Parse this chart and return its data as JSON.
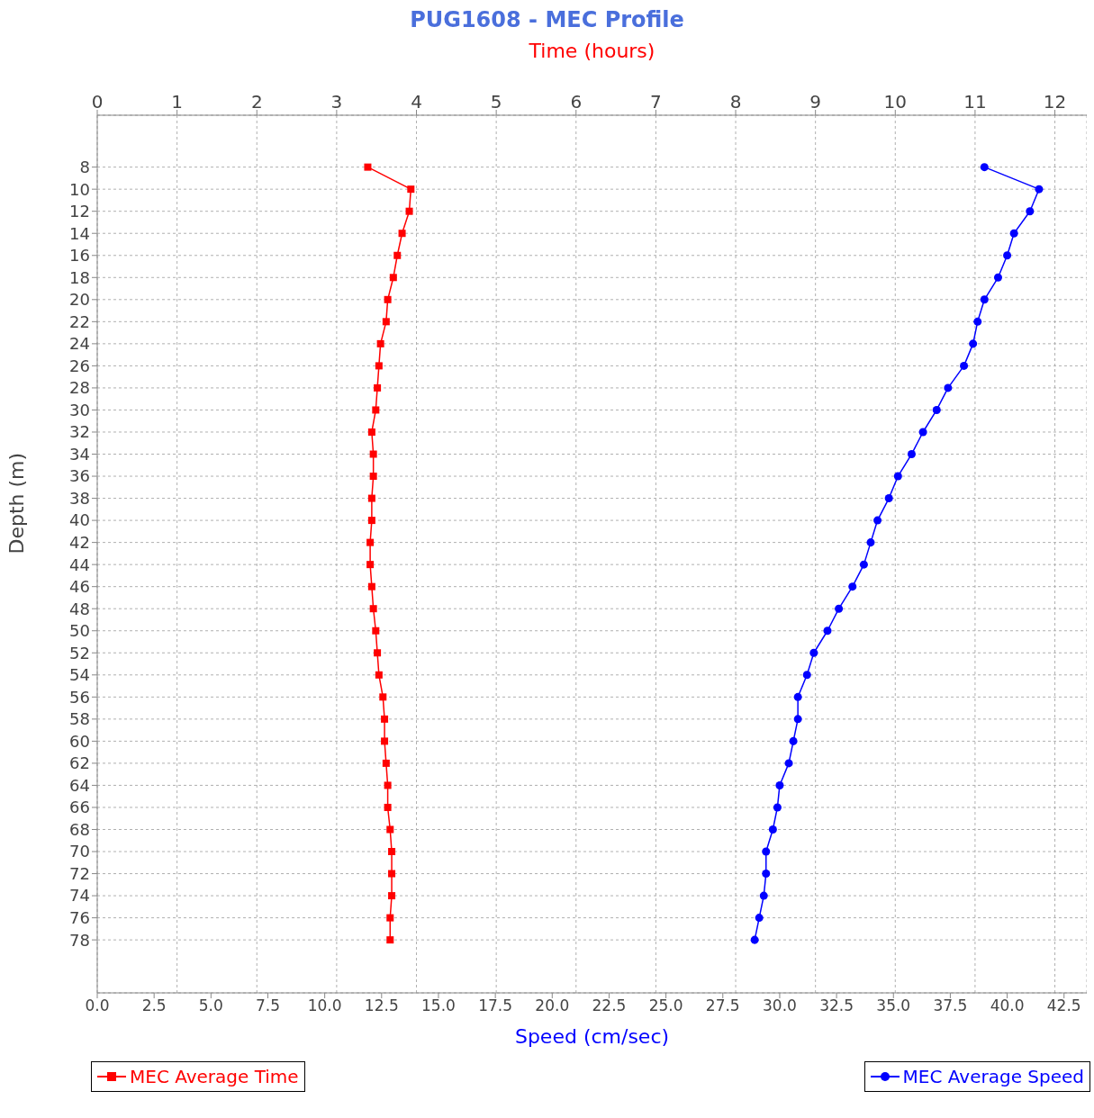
{
  "chart_data": {
    "type": "line",
    "title": "PUG1608 - MEC Profile",
    "xlabel": "Speed (cm/sec)",
    "x2label": "Time (hours)",
    "ylabel": "Depth (m)",
    "xlim": [
      0,
      43.5
    ],
    "xticks": [
      {
        "value": 0,
        "label": "0.0"
      },
      {
        "value": 2.5,
        "label": "2.5"
      },
      {
        "value": 5,
        "label": "5.0"
      },
      {
        "value": 7.5,
        "label": "7.5"
      },
      {
        "value": 10,
        "label": "10.0"
      },
      {
        "value": 12.5,
        "label": "12.5"
      },
      {
        "value": 15,
        "label": "15.0"
      },
      {
        "value": 17.5,
        "label": "17.5"
      },
      {
        "value": 20,
        "label": "20.0"
      },
      {
        "value": 22.5,
        "label": "22.5"
      },
      {
        "value": 25,
        "label": "25.0"
      },
      {
        "value": 27.5,
        "label": "27.5"
      },
      {
        "value": 30,
        "label": "30.0"
      },
      {
        "value": 32.5,
        "label": "32.5"
      },
      {
        "value": 35,
        "label": "35.0"
      },
      {
        "value": 37.5,
        "label": "37.5"
      },
      {
        "value": 40,
        "label": "40.0"
      },
      {
        "value": 42.5,
        "label": "42.5"
      }
    ],
    "x2lim": [
      0,
      12.4
    ],
    "x2ticks": [
      0,
      1,
      2,
      3,
      4,
      5,
      6,
      7,
      8,
      9,
      10,
      11,
      12
    ],
    "ylim": [
      82.8,
      3.3
    ],
    "yticks": [
      8,
      10,
      12,
      14,
      16,
      18,
      20,
      22,
      24,
      26,
      28,
      30,
      32,
      34,
      36,
      38,
      40,
      42,
      44,
      46,
      48,
      50,
      52,
      54,
      56,
      58,
      60,
      62,
      64,
      66,
      68,
      70,
      72,
      74,
      76,
      78
    ],
    "grid": true,
    "legend": "bottom",
    "series": [
      {
        "name": "MEC Average Time",
        "color": "#ff0000",
        "axis": "x2",
        "marker": "square",
        "x": [
          3.39,
          3.93,
          3.91,
          3.82,
          3.76,
          3.71,
          3.64,
          3.62,
          3.55,
          3.53,
          3.51,
          3.49,
          3.44,
          3.46,
          3.46,
          3.44,
          3.44,
          3.42,
          3.42,
          3.44,
          3.46,
          3.49,
          3.51,
          3.53,
          3.58,
          3.6,
          3.6,
          3.62,
          3.64,
          3.64,
          3.67,
          3.69,
          3.69,
          3.69,
          3.67,
          3.67
        ],
        "values": [
          8,
          10,
          12,
          14,
          16,
          18,
          20,
          22,
          24,
          26,
          28,
          30,
          32,
          34,
          36,
          38,
          40,
          42,
          44,
          46,
          48,
          50,
          52,
          54,
          56,
          58,
          60,
          62,
          64,
          66,
          68,
          70,
          72,
          74,
          76,
          78
        ]
      },
      {
        "name": "MEC Average Speed",
        "color": "#0000ff",
        "marker": "circle",
        "x": [
          39.0,
          41.4,
          41.0,
          40.3,
          40.0,
          39.6,
          39.0,
          38.7,
          38.5,
          38.1,
          37.4,
          36.9,
          36.3,
          35.8,
          35.2,
          34.8,
          34.3,
          34.0,
          33.7,
          33.2,
          32.6,
          32.1,
          31.5,
          31.2,
          30.8,
          30.8,
          30.6,
          30.4,
          30.0,
          29.9,
          29.7,
          29.4,
          29.4,
          29.3,
          29.1,
          28.9
        ],
        "values": [
          8,
          10,
          12,
          14,
          16,
          18,
          20,
          22,
          24,
          26,
          28,
          30,
          32,
          34,
          36,
          38,
          40,
          42,
          44,
          46,
          48,
          50,
          52,
          54,
          56,
          58,
          60,
          62,
          64,
          66,
          68,
          70,
          72,
          74,
          76,
          78
        ]
      }
    ]
  }
}
